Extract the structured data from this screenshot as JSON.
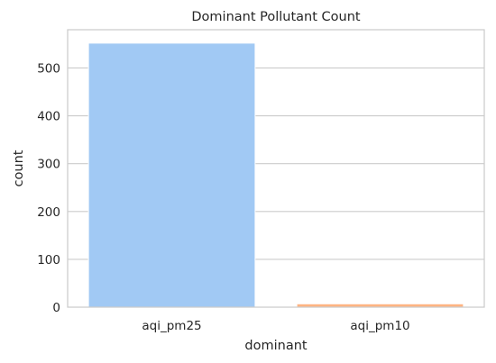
{
  "chart_data": {
    "type": "bar",
    "title": "Dominant Pollutant Count",
    "xlabel": "dominant",
    "ylabel": "count",
    "categories": [
      "aqi_pm25",
      "aqi_pm10"
    ],
    "values": [
      552,
      7
    ],
    "ylim": [
      0,
      580
    ],
    "yticks": [
      0,
      100,
      200,
      300,
      400,
      500
    ],
    "grid": "horizontal",
    "colors": [
      "#a1c9f4",
      "#ffb482"
    ]
  }
}
